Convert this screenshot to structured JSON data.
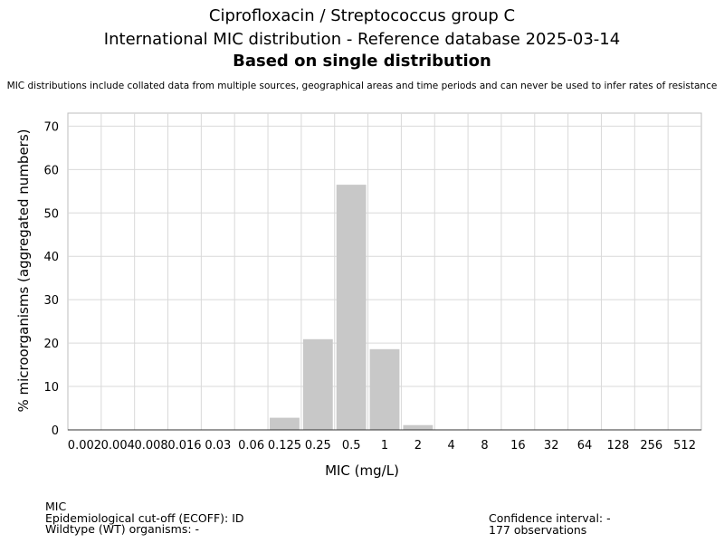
{
  "chart_data": {
    "type": "bar",
    "title_line1": "Ciprofloxacin / Streptococcus group C",
    "title_line2": "International MIC distribution - Reference database 2025-03-14",
    "subtitle": "Based on single distribution",
    "note": "MIC distributions include collated data from multiple sources, geographical areas and time periods and can never be used to infer rates of resistance",
    "xlabel": "MIC (mg/L)",
    "ylabel": "% microorganisms (aggregated numbers)",
    "categories": [
      "0.002",
      "0.004",
      "0.008",
      "0.016",
      "0.03",
      "0.06",
      "0.125",
      "0.25",
      "0.5",
      "1",
      "2",
      "4",
      "8",
      "16",
      "32",
      "64",
      "128",
      "256",
      "512"
    ],
    "values": [
      0,
      0,
      0,
      0,
      0,
      0,
      2.8,
      20.9,
      56.5,
      18.6,
      1.1,
      0,
      0,
      0,
      0,
      0,
      0,
      0,
      0
    ],
    "ylim": [
      0,
      73
    ],
    "yticks": [
      0,
      10,
      20,
      30,
      40,
      50,
      60,
      70
    ],
    "grid": true,
    "bar_color": "#c8c8c8",
    "grid_color": "#d9d9d9"
  },
  "footer": {
    "left_line1": "MIC",
    "left_line2": "Epidemiological cut-off (ECOFF): ID",
    "left_line3": "Wildtype (WT) organisms:  -",
    "right_line1": "Confidence interval: -",
    "right_line2": "177 observations"
  }
}
